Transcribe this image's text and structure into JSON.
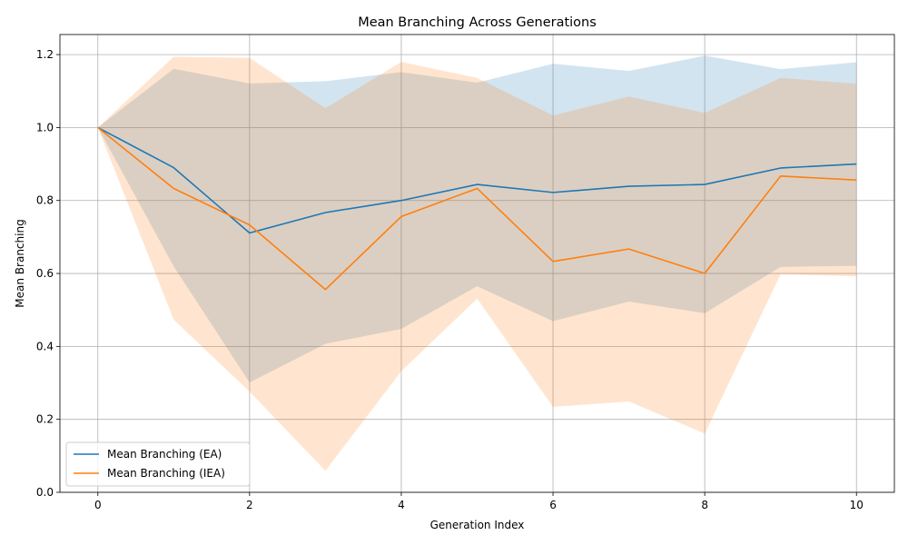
{
  "chart_data": {
    "type": "line",
    "title": "Mean Branching Across Generations",
    "xlabel": "Generation Index",
    "ylabel": "Mean Branching",
    "xlim": [
      -0.5,
      10.5
    ],
    "ylim": [
      0.0,
      1.255
    ],
    "xticks": [
      0,
      2,
      4,
      6,
      8,
      10
    ],
    "yticks": [
      0.0,
      0.2,
      0.4,
      0.6,
      0.8,
      1.0,
      1.2
    ],
    "ytick_labels": [
      "0.0",
      "0.2",
      "0.4",
      "0.6",
      "0.8",
      "1.0",
      "1.2"
    ],
    "grid": true,
    "legend_position": "lower-left",
    "x": [
      0,
      1,
      2,
      3,
      4,
      5,
      6,
      7,
      8,
      9,
      10
    ],
    "series": [
      {
        "name": "Mean Branching (EA)",
        "color": "#1f77b4",
        "values": [
          1.0,
          0.89,
          0.711,
          0.767,
          0.8,
          0.844,
          0.822,
          0.839,
          0.844,
          0.889,
          0.9
        ],
        "band_upper": [
          1.0,
          1.161,
          1.121,
          1.127,
          1.152,
          1.123,
          1.175,
          1.155,
          1.197,
          1.16,
          1.179
        ],
        "band_lower": [
          1.0,
          0.619,
          0.301,
          0.407,
          0.448,
          0.565,
          0.469,
          0.523,
          0.491,
          0.618,
          0.621
        ]
      },
      {
        "name": "Mean Branching (IEA)",
        "color": "#ff7f0e",
        "values": [
          1.0,
          0.833,
          0.733,
          0.556,
          0.756,
          0.833,
          0.633,
          0.667,
          0.6,
          0.867,
          0.856
        ],
        "band_upper": [
          1.0,
          1.194,
          1.191,
          1.053,
          1.18,
          1.136,
          1.033,
          1.085,
          1.04,
          1.136,
          1.12
        ],
        "band_lower": [
          1.0,
          0.473,
          0.276,
          0.059,
          0.332,
          0.531,
          0.234,
          0.249,
          0.161,
          0.598,
          0.592
        ]
      }
    ]
  }
}
